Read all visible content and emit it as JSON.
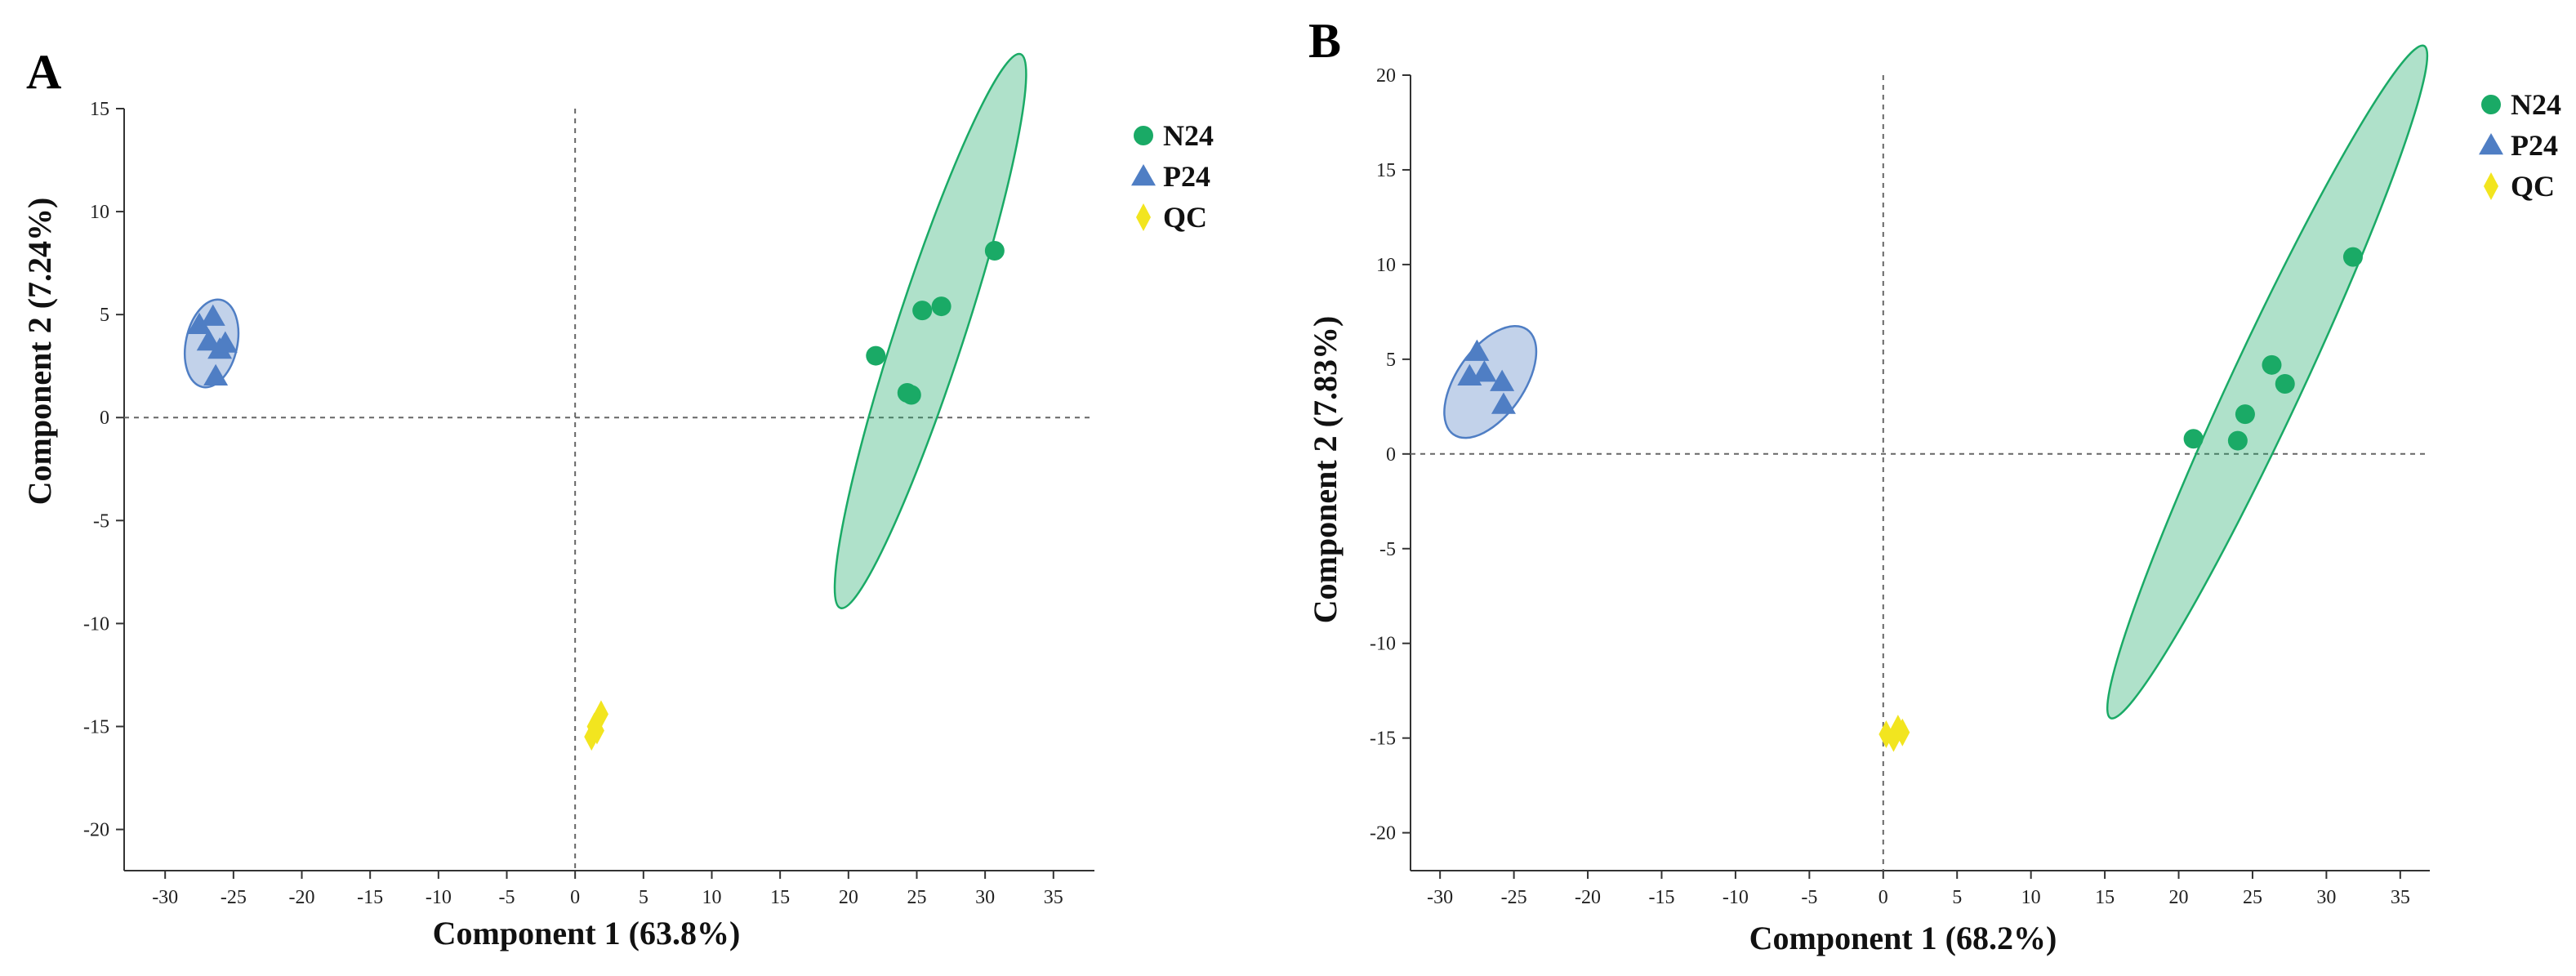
{
  "chart_data": [
    {
      "type": "scatter",
      "panel": "A",
      "xlabel": "Component 1 (63.8%)",
      "ylabel": "Component 2 (7.24%)",
      "xlim": [
        -33,
        38
      ],
      "ylim": [
        -22,
        15
      ],
      "xticks": [
        "-30",
        "-25",
        "-20",
        "-15",
        "-10",
        "-5",
        "0",
        "5",
        "10",
        "15",
        "20",
        "25",
        "30",
        "35"
      ],
      "yticks": [
        "15",
        "10",
        "5",
        "0",
        "-5",
        "-10",
        "-15",
        "-20"
      ],
      "reference_lines": {
        "x": 0,
        "y": 0
      },
      "legend_position": "top-right",
      "series": [
        {
          "name": "N24",
          "marker": "circle",
          "color": "#1aaa66",
          "points": [
            [
              22.0,
              3.0
            ],
            [
              24.3,
              1.2
            ],
            [
              24.6,
              1.1
            ],
            [
              25.4,
              5.2
            ],
            [
              26.8,
              5.4
            ],
            [
              30.7,
              8.1
            ]
          ],
          "ellipse": {
            "cx": 26.0,
            "cy": 4.2,
            "rx": 17.0,
            "ry": 2.0,
            "angle_deg": -72
          }
        },
        {
          "name": "P24",
          "marker": "triangle",
          "color": "#4f7ec4",
          "points": [
            [
              -27.5,
              4.5
            ],
            [
              -26.5,
              4.9
            ],
            [
              -26.8,
              3.7
            ],
            [
              -26.0,
              3.3
            ],
            [
              -25.6,
              3.6
            ],
            [
              -26.3,
              2.0
            ]
          ],
          "ellipse": {
            "cx": -26.6,
            "cy": 3.6,
            "rx": 2.6,
            "ry": 1.5,
            "angle_deg": -78
          }
        },
        {
          "name": "QC",
          "marker": "diamond",
          "color": "#f2e51f",
          "points": [
            [
              1.2,
              -15.5
            ],
            [
              1.4,
              -15.0
            ],
            [
              1.6,
              -15.2
            ],
            [
              1.9,
              -14.4
            ]
          ],
          "ellipse": null
        }
      ]
    },
    {
      "type": "scatter",
      "panel": "B",
      "xlabel": "Component 1 (68.2%)",
      "ylabel": "Component 2 (7.83%)",
      "xlim": [
        -32,
        37
      ],
      "ylim": [
        -22,
        20
      ],
      "xticks": [
        "-30",
        "-25",
        "-20",
        "-15",
        "-10",
        "-5",
        "0",
        "5",
        "10",
        "15",
        "20",
        "25",
        "30",
        "35"
      ],
      "yticks": [
        "20",
        "15",
        "10",
        "5",
        "0",
        "-5",
        "-10",
        "-15",
        "-20"
      ],
      "reference_lines": {
        "x": 0,
        "y": 0
      },
      "legend_position": "top-right",
      "series": [
        {
          "name": "N24",
          "marker": "circle",
          "color": "#1aaa66",
          "points": [
            [
              21.0,
              0.8
            ],
            [
              24.0,
              0.7
            ],
            [
              24.5,
              2.1
            ],
            [
              26.3,
              4.7
            ],
            [
              27.2,
              3.7
            ],
            [
              31.8,
              10.4
            ]
          ],
          "ellipse": {
            "cx": 26.0,
            "cy": 3.8,
            "rx": 22.0,
            "ry": 2.1,
            "angle_deg": -65
          }
        },
        {
          "name": "P24",
          "marker": "triangle",
          "color": "#4f7ec4",
          "points": [
            [
              -27.5,
              5.4
            ],
            [
              -28.0,
              4.1
            ],
            [
              -27.0,
              4.3
            ],
            [
              -25.8,
              3.8
            ],
            [
              -25.7,
              2.6
            ]
          ],
          "ellipse": {
            "cx": -26.6,
            "cy": 3.8,
            "rx": 3.8,
            "ry": 2.0,
            "angle_deg": -55
          }
        },
        {
          "name": "QC",
          "marker": "diamond",
          "color": "#f2e51f",
          "points": [
            [
              0.2,
              -14.8
            ],
            [
              0.7,
              -15.0
            ],
            [
              1.0,
              -14.5
            ],
            [
              1.3,
              -14.7
            ]
          ],
          "ellipse": null
        }
      ]
    }
  ]
}
